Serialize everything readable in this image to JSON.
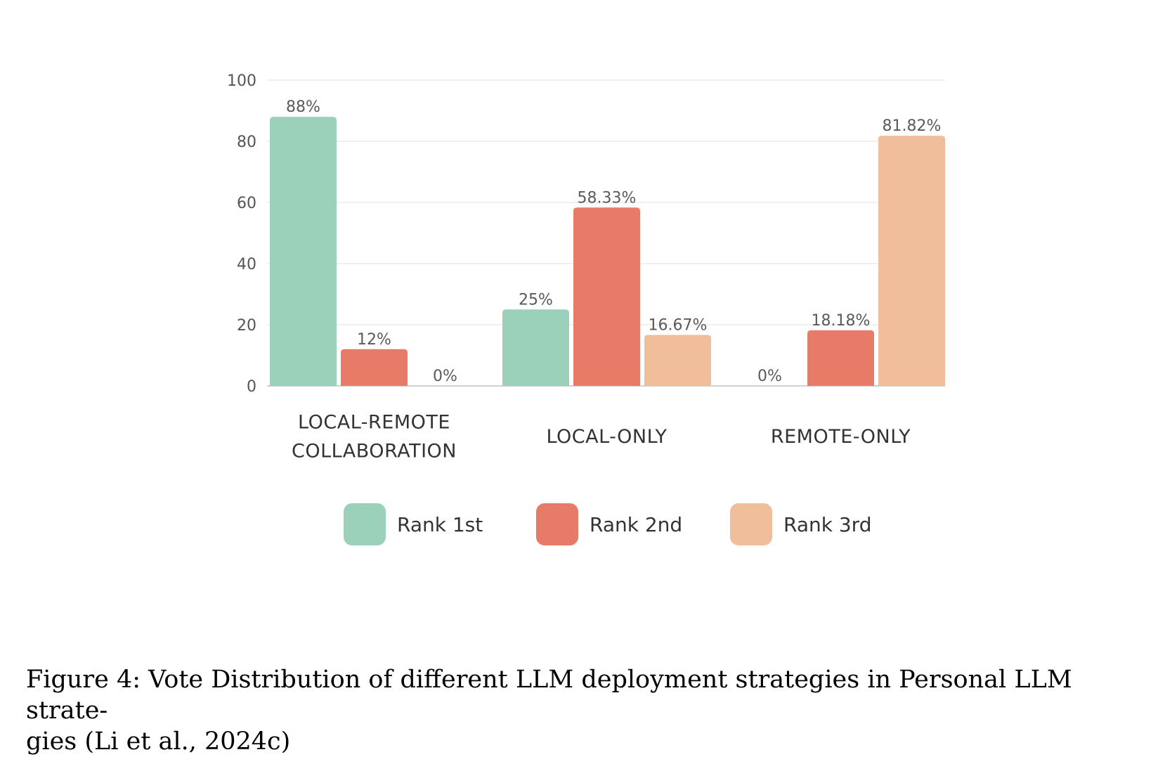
{
  "chart_data": {
    "type": "bar",
    "categories": [
      [
        "LOCAL-REMOTE",
        "COLLABORATION"
      ],
      [
        "LOCAL-ONLY"
      ],
      [
        "REMOTE-ONLY"
      ]
    ],
    "series": [
      {
        "name": "Rank 1st",
        "color": "#9bd0bb",
        "values": [
          88,
          25,
          0
        ],
        "labels": [
          "88%",
          "25%",
          "0%"
        ]
      },
      {
        "name": "Rank 2nd",
        "color": "#e77b68",
        "values": [
          12,
          58.33,
          18.18
        ],
        "labels": [
          "12%",
          "58.33%",
          "18.18%"
        ]
      },
      {
        "name": "Rank 3rd",
        "color": "#f0be9b",
        "values": [
          0,
          16.67,
          81.82
        ],
        "labels": [
          "0%",
          "16.67%",
          "81.82%"
        ]
      }
    ],
    "yticks": [
      "0",
      "20",
      "40",
      "60",
      "80",
      "100"
    ],
    "ylim": [
      0,
      100
    ],
    "grid": true,
    "legend_position": "bottom",
    "xlabel": "",
    "ylabel": ""
  },
  "caption": {
    "line1": "Figure 4: Vote Distribution of different LLM deployment strategies in Personal LLM strate-",
    "line2": "gies (Li et al., 2024c)"
  }
}
